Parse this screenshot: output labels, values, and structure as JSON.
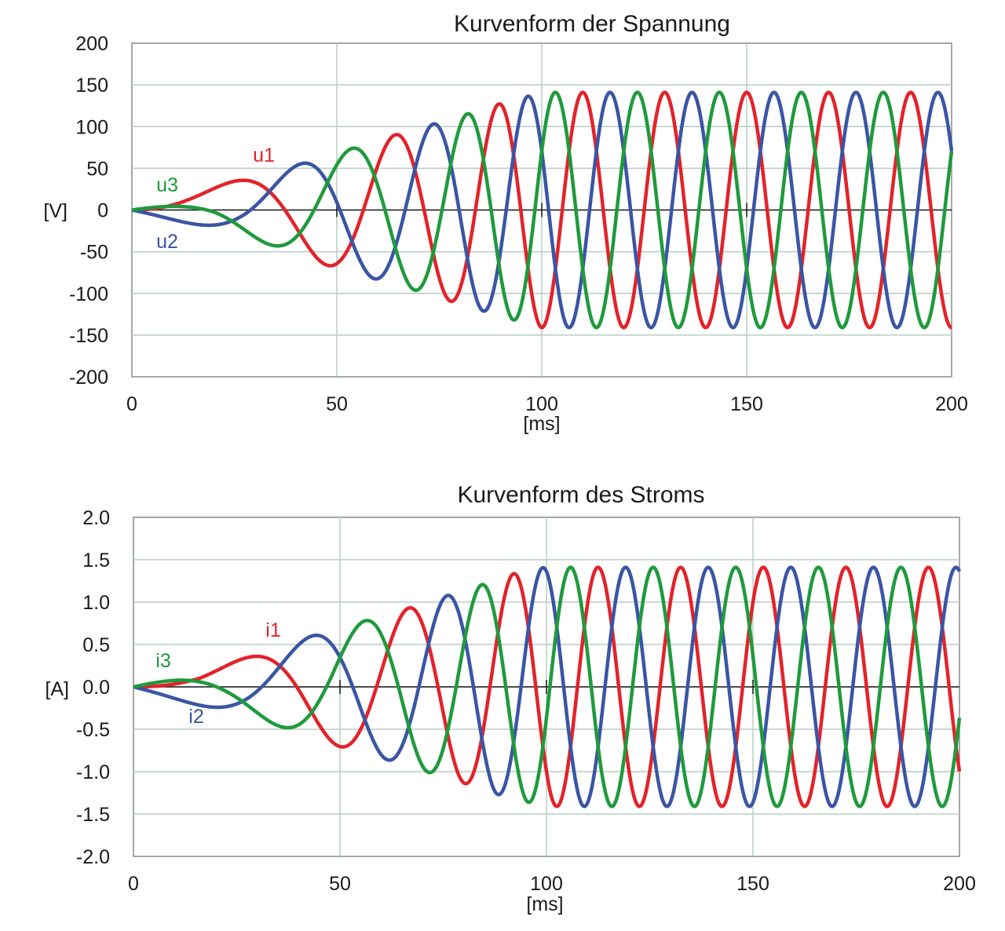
{
  "chart_data": [
    {
      "type": "line",
      "title": "Kurvenform der Spannung",
      "xlabel": "[ms]",
      "ylabel": "[V]",
      "xlim": [
        0,
        200
      ],
      "ylim": [
        -200,
        200
      ],
      "x_ticks": [
        "0",
        "50",
        "100",
        "150",
        "200"
      ],
      "y_ticks": [
        "200",
        "150",
        "100",
        "50",
        "0",
        "-50",
        "-100",
        "-150",
        "-200"
      ],
      "grid": true,
      "model": {
        "start_freq_hz": 5,
        "final_freq_hz": 50,
        "ramp_end_ms": 100,
        "amplitude_final": 141,
        "amplitude_floor": 0,
        "phase_shift_deg": 120,
        "label_x_ms": [
          28,
          8,
          8
        ]
      },
      "series": [
        {
          "name": "u1",
          "color": "#e2232a",
          "phase_deg": 0,
          "amplitude_points": [
            [
              0,
              0
            ],
            [
              34,
              47
            ],
            [
              56,
              78
            ],
            [
              71,
              100
            ],
            [
              84,
              118
            ],
            [
              95,
              136
            ],
            [
              100,
              141
            ],
            [
              200,
              141
            ]
          ]
        },
        {
          "name": "u2",
          "color": "#3a55a4",
          "phase_deg": -120,
          "amplitude_points": [
            [
              0,
              0
            ],
            [
              26,
              30
            ],
            [
              50,
              70
            ],
            [
              67,
              93
            ],
            [
              80,
              113
            ],
            [
              92,
              130
            ],
            [
              100,
              141
            ],
            [
              200,
              141
            ]
          ]
        },
        {
          "name": "u3",
          "color": "#1f9a3c",
          "phase_deg": 120,
          "amplitude_points": [
            [
              0,
              0
            ],
            [
              18,
              14
            ],
            [
              43,
              58
            ],
            [
              62,
              86
            ],
            [
              76,
              106
            ],
            [
              88,
              125
            ],
            [
              100,
              141
            ],
            [
              200,
              141
            ]
          ]
        }
      ]
    },
    {
      "type": "line",
      "title": "Kurvenform des Stroms",
      "xlabel": "[ms]",
      "ylabel": "[A]",
      "xlim": [
        0,
        200
      ],
      "ylim": [
        -2.0,
        2.0
      ],
      "x_ticks": [
        "0",
        "50",
        "100",
        "150",
        "200"
      ],
      "y_ticks": [
        "2.0",
        "1.5",
        "1.0",
        "0.5",
        "0.0",
        "-0.5",
        "-1.0",
        "-1.5",
        "-2.0"
      ],
      "grid": true,
      "model": {
        "start_freq_hz": 5,
        "final_freq_hz": 50,
        "ramp_end_ms": 100,
        "amplitude_final": 1.41,
        "amplitude_floor": 0,
        "phase_shift_deg": 120,
        "phase_lag_deg": 45,
        "label_x_ms": [
          30,
          14,
          6
        ]
      },
      "series": [
        {
          "name": "i1",
          "color": "#e2232a",
          "phase_deg": 0,
          "amplitude_points": [
            [
              0,
              0
            ],
            [
              16,
              0.15
            ],
            [
              42,
              0.6
            ],
            [
              62,
              0.86
            ],
            [
              76,
              1.07
            ],
            [
              87,
              1.25
            ],
            [
              96,
              1.4
            ],
            [
              100,
              1.41
            ],
            [
              200,
              1.41
            ]
          ]
        },
        {
          "name": "i2",
          "color": "#3a55a4",
          "phase_deg": -120,
          "amplitude_points": [
            [
              0,
              0
            ],
            [
              34,
              0.47
            ],
            [
              56,
              0.78
            ],
            [
              71,
              1.0
            ],
            [
              84,
              1.2
            ],
            [
              95,
              1.38
            ],
            [
              100,
              1.41
            ],
            [
              200,
              1.41
            ]
          ]
        },
        {
          "name": "i3",
          "color": "#1f9a3c",
          "phase_deg": 120,
          "amplitude_points": [
            [
              0,
              0
            ],
            [
              26,
              0.32
            ],
            [
              50,
              0.69
            ],
            [
              67,
              0.94
            ],
            [
              80,
              1.14
            ],
            [
              92,
              1.32
            ],
            [
              100,
              1.41
            ],
            [
              200,
              1.41
            ]
          ]
        }
      ]
    }
  ]
}
